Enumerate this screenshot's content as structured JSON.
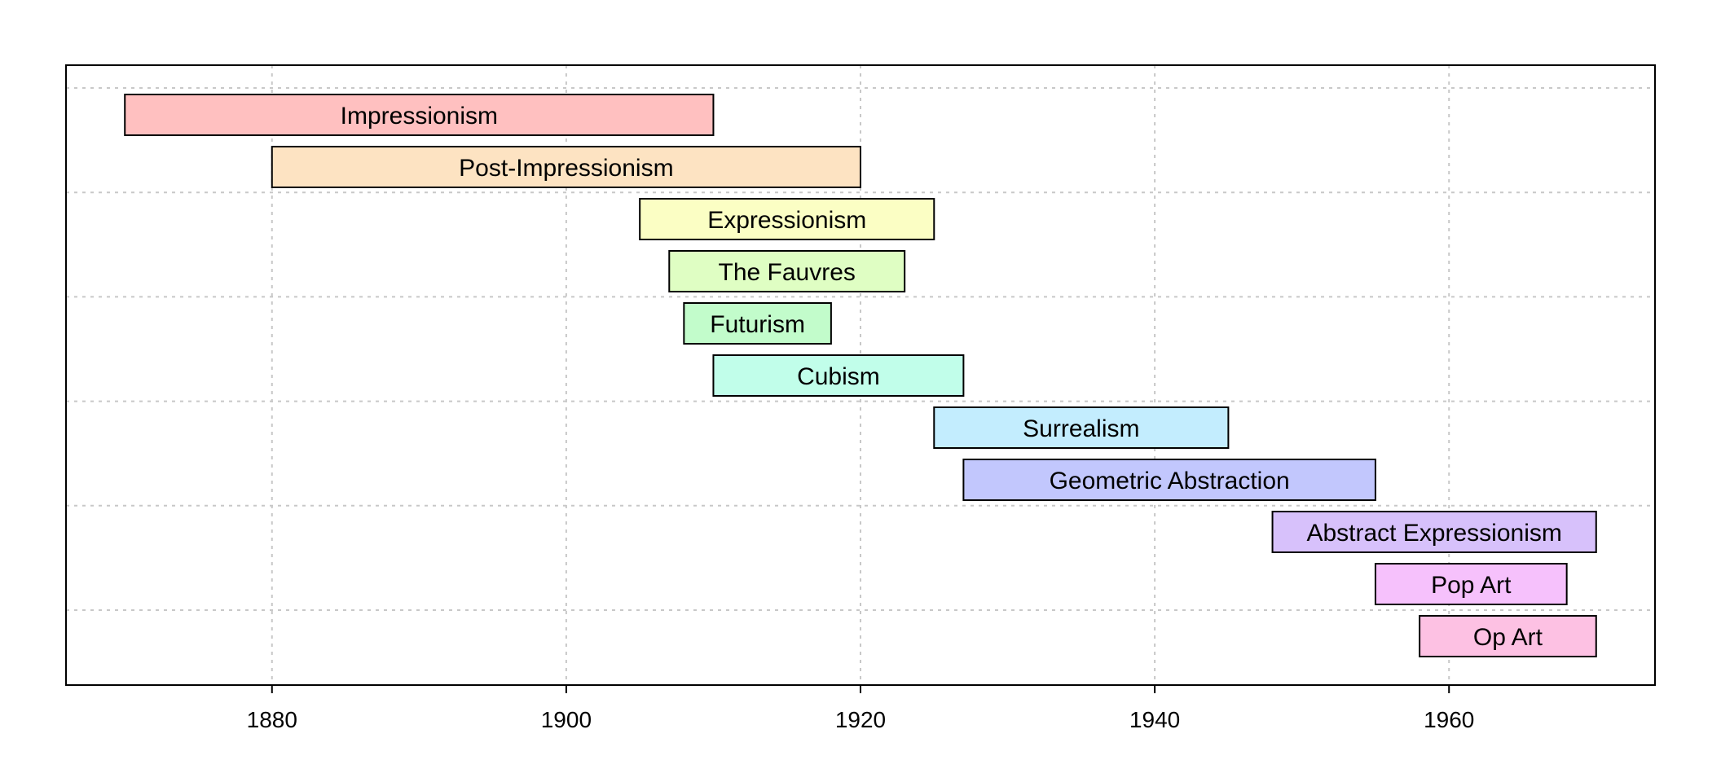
{
  "chart_data": {
    "type": "bar",
    "orientation": "horizontal-range",
    "title": "",
    "xlabel": "",
    "ylabel": "",
    "xlim": [
      1866,
      1974
    ],
    "x_ticks": [
      "1880",
      "1900",
      "1920",
      "1940",
      "1960"
    ],
    "grid": true,
    "legend": "none",
    "series": [
      {
        "label": "Impressionism",
        "start": 1870,
        "end": 1910,
        "color": "#FFC0C0"
      },
      {
        "label": "Post-Impressionism",
        "start": 1880,
        "end": 1920,
        "color": "#FDE3C2"
      },
      {
        "label": "Expressionism",
        "start": 1905,
        "end": 1925,
        "color": "#FBFEC4"
      },
      {
        "label": "The Fauvres",
        "start": 1907,
        "end": 1923,
        "color": "#DFFEC3"
      },
      {
        "label": "Futurism",
        "start": 1908,
        "end": 1918,
        "color": "#C2FCCB"
      },
      {
        "label": "Cubism",
        "start": 1910,
        "end": 1927,
        "color": "#C1FEEA"
      },
      {
        "label": "Surrealism",
        "start": 1925,
        "end": 1945,
        "color": "#C3EDFE"
      },
      {
        "label": "Geometric Abstraction",
        "start": 1927,
        "end": 1955,
        "color": "#C2C7FD"
      },
      {
        "label": "Abstract Expressionism",
        "start": 1948,
        "end": 1970,
        "color": "#D7C1FB"
      },
      {
        "label": "Pop Art",
        "start": 1955,
        "end": 1968,
        "color": "#F6C1FC"
      },
      {
        "label": "Op Art",
        "start": 1958,
        "end": 1970,
        "color": "#FDC1E3"
      }
    ]
  }
}
